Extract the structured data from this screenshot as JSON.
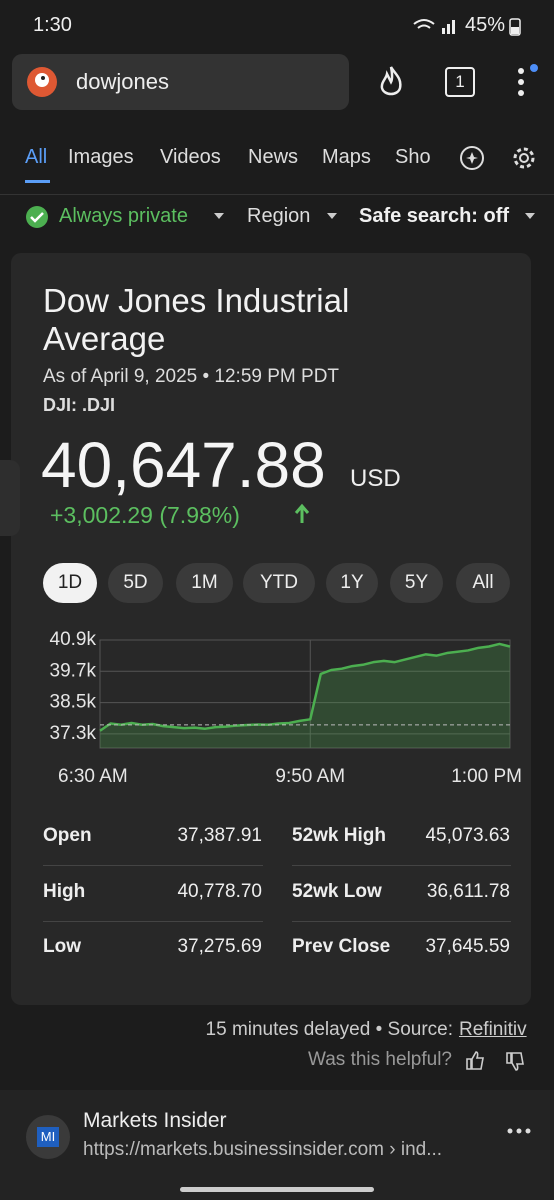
{
  "status_bar": {
    "time": "1:30",
    "battery": "45%"
  },
  "search": {
    "query": "dowjones",
    "tab_count": "1"
  },
  "tabs": [
    "All",
    "Images",
    "Videos",
    "News",
    "Maps",
    "Sho"
  ],
  "filters": [
    "Always private",
    "Region",
    "Safe search: off"
  ],
  "card": {
    "title": "Dow Jones Industrial Average",
    "as_of": "As of April 9, 2025 • 12:59 PM PDT",
    "symbol": "DJI: .DJI",
    "price": "40,647.88",
    "currency": "USD",
    "change": "+3,002.29 (7.98%)",
    "ranges": [
      "1D",
      "5D",
      "1M",
      "YTD",
      "1Y",
      "5Y",
      "All"
    ],
    "stats": [
      [
        "Open",
        "37,387.91",
        "52wk High",
        "45,073.63"
      ],
      [
        "High",
        "40,778.70",
        "52wk Low",
        "36,611.78"
      ],
      [
        "Low",
        "37,275.69",
        "Prev Close",
        "37,645.59"
      ]
    ]
  },
  "chart_data": {
    "type": "line",
    "categories": [
      "6:30 AM",
      null,
      null,
      null,
      null,
      null,
      null,
      null,
      null,
      null,
      null,
      null,
      null,
      null,
      null,
      null,
      null,
      null,
      null,
      null,
      "9:50 AM",
      null,
      null,
      null,
      null,
      null,
      null,
      null,
      null,
      null,
      null,
      null,
      null,
      null,
      null,
      null,
      null,
      null,
      null,
      "1:00 PM"
    ],
    "series": [
      {
        "color": "#4caf50",
        "values": [
          37420,
          37700,
          37650,
          37720,
          37650,
          37680,
          37600,
          37560,
          37520,
          37540,
          37500,
          37560,
          37580,
          37620,
          37640,
          37660,
          37650,
          37700,
          37720,
          37800,
          37860,
          39600,
          39750,
          39800,
          39900,
          39950,
          40050,
          40100,
          40050,
          40150,
          40250,
          40350,
          40300,
          40400,
          40450,
          40500,
          40600,
          40650,
          40750,
          40647.88
        ]
      }
    ],
    "reference_line": 37645.59,
    "ylim": [
      36760,
      40900
    ],
    "yticks": [
      {
        "value": 40900,
        "label": "40.9k"
      },
      {
        "value": 39700,
        "label": "39.7k"
      },
      {
        "value": 38500,
        "label": "38.5k"
      },
      {
        "value": 37300,
        "label": "37.3k"
      }
    ],
    "grid": true
  },
  "footer": {
    "delay": "15 minutes delayed • Source:",
    "source_link": "Refinitiv",
    "helpful": "Was this helpful?"
  },
  "result": {
    "icon": "MI",
    "title": "Markets Insider",
    "url": "https://markets.businessinsider.com › ind..."
  }
}
